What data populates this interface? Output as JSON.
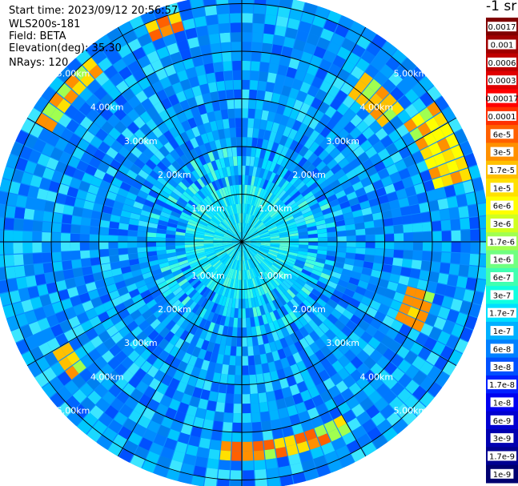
{
  "header": {
    "start_time": "Start time: 2023/09/12 20:56:57",
    "instrument": "WLS200s-181",
    "field": "Field: BETA",
    "elevation": "Elevation(deg): 35.30",
    "nrays": "NRays: 120"
  },
  "colorbar": {
    "unit_label": "-1 sr",
    "ticks": [
      "0.0017",
      "0.001",
      "0.0006",
      "0.0003",
      "0.00017",
      "0.0001",
      "6e-5",
      "3e-5",
      "1.7e-5",
      "1e-5",
      "6e-6",
      "3e-6",
      "1.7e-6",
      "1e-6",
      "6e-7",
      "3e-7",
      "1.7e-7",
      "1e-7",
      "6e-8",
      "3e-8",
      "1.7e-8",
      "1e-8",
      "6e-9",
      "3e-9",
      "1.7e-9",
      "1e-9"
    ],
    "colors": [
      "#800000",
      "#a00000",
      "#c00000",
      "#e00000",
      "#ff0000",
      "#ff3000",
      "#ff6000",
      "#ff9000",
      "#ffc000",
      "#ffe000",
      "#ffff00",
      "#d0ff20",
      "#a0ff50",
      "#70ff80",
      "#40ffb0",
      "#10ffe0",
      "#00e0ff",
      "#00b0ff",
      "#0080ff",
      "#0050ff",
      "#0020ff",
      "#0000f0",
      "#0000d0",
      "#0000b0",
      "#000090",
      "#000070"
    ]
  },
  "chart_data": {
    "type": "ppi-polar-scan",
    "field": "BETA",
    "n_rays": 120,
    "ring_labels": [
      "1.00km",
      "2.00km",
      "3.00km",
      "4.00km",
      "5.00km"
    ],
    "ring_ranges_km": [
      1,
      2,
      3,
      4,
      5
    ],
    "max_range_km": 5.2,
    "colorscale_min": "1e-9",
    "colorscale_max": "0.0017",
    "high_return_arcs": [
      {
        "azimuth_deg": [
          300,
          320
        ],
        "range_km": [
          4.6,
          5.1
        ],
        "level": "3e-5"
      },
      {
        "azimuth_deg": [
          335,
          345
        ],
        "range_km": [
          4.7,
          5.0
        ],
        "level": "6e-5"
      },
      {
        "azimuth_deg": [
          35,
          50
        ],
        "range_km": [
          3.8,
          4.4
        ],
        "level": "1.7e-5"
      },
      {
        "azimuth_deg": [
          55,
          75
        ],
        "range_km": [
          4.3,
          5.0
        ],
        "level": "6e-6"
      },
      {
        "azimuth_deg": [
          105,
          118
        ],
        "range_km": [
          3.7,
          4.2
        ],
        "level": "3e-5"
      },
      {
        "azimuth_deg": [
          150,
          185
        ],
        "range_km": [
          4.2,
          4.6
        ],
        "level": "6e-5"
      },
      {
        "azimuth_deg": [
          230,
          240
        ],
        "range_km": [
          4.2,
          4.5
        ],
        "level": "1.7e-5"
      }
    ]
  }
}
